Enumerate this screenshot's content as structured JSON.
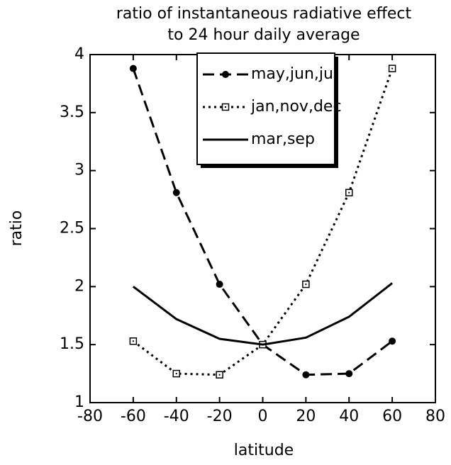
{
  "chart_data": {
    "type": "line",
    "title": [
      "ratio of instantaneous radiative effect",
      "to 24 hour daily average"
    ],
    "x_label": "latitude",
    "y_label": "ratio",
    "x": [
      -60,
      -40,
      -20,
      0,
      20,
      40,
      60
    ],
    "series": [
      {
        "name": "may,jun,jul",
        "color": "#000000",
        "dash": "dashed",
        "marker": "filled-circle",
        "values": [
          3.88,
          2.81,
          2.02,
          1.5,
          1.24,
          1.25,
          1.53
        ]
      },
      {
        "name": "jan,nov,dec",
        "color": "#000000",
        "dash": "dotted",
        "marker": "open-square",
        "values": [
          1.53,
          1.25,
          1.24,
          1.5,
          2.02,
          2.81,
          3.88
        ]
      },
      {
        "name": "mar,sep",
        "color": "#000000",
        "dash": "solid",
        "marker": "none",
        "values": [
          2.0,
          1.72,
          1.55,
          1.5,
          1.56,
          1.74,
          2.03
        ]
      }
    ],
    "xlim": [
      -80,
      80
    ],
    "xticks": [
      -80,
      -60,
      -40,
      -20,
      0,
      20,
      40,
      60,
      80
    ],
    "ylim": [
      1,
      4
    ],
    "yticks": [
      1,
      1.5,
      2,
      2.5,
      3,
      3.5,
      4
    ],
    "legend": "upper-center",
    "grid": false
  }
}
